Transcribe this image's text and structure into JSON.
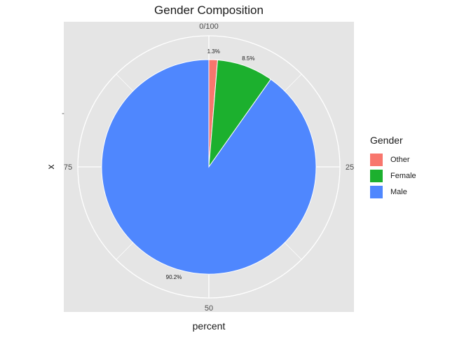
{
  "chart_data": {
    "type": "pie",
    "title": "Gender Composition",
    "xlabel": "percent",
    "ylabel": "x",
    "y_tick": "-",
    "theta_ticks": [
      "0/100",
      "25",
      "50",
      "75"
    ],
    "legend_title": "Gender",
    "legend_position": "right",
    "slices": [
      {
        "label": "Other",
        "value": 1.3,
        "text": "1.3%",
        "color": "#F8766D"
      },
      {
        "label": "Female",
        "value": 8.5,
        "text": "8.5%",
        "color": "#1CB02E"
      },
      {
        "label": "Male",
        "value": 90.2,
        "text": "90.2%",
        "color": "#4F87FE"
      }
    ],
    "panel_background": "#E5E5E5",
    "grid_color": "#FFFFFF"
  }
}
